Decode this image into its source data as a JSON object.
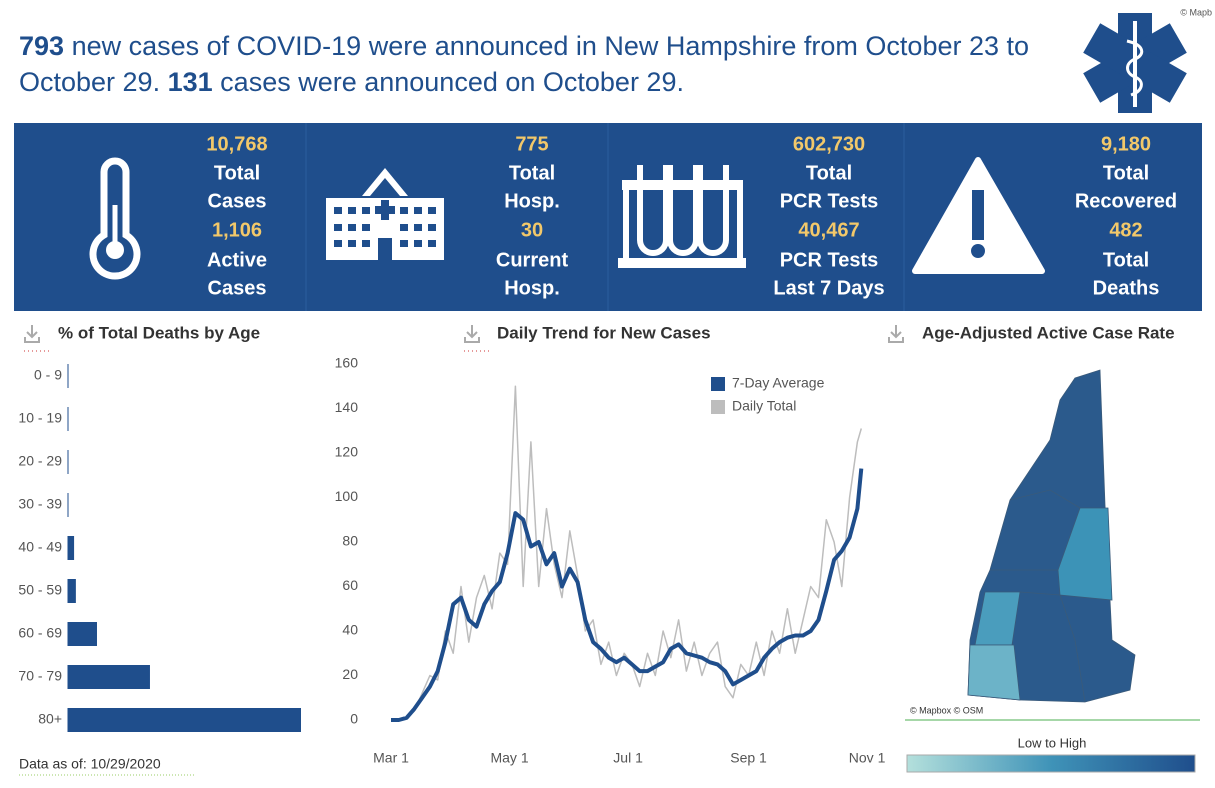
{
  "corner_attribution": "© Mapb",
  "header": {
    "new_cases": 793,
    "text1": "new cases of COVID-19 were announced in New Hampshire from October 23 to October 29.",
    "day_cases": 131,
    "text2": "cases were announced on October 29."
  },
  "stats": [
    {
      "value1": "10,768",
      "label1": [
        "Total",
        "Cases"
      ],
      "value2": "1,106",
      "label2": [
        "Active",
        "Cases"
      ]
    },
    {
      "value1": "775",
      "label1": [
        "Total",
        "Hosp."
      ],
      "value2": "30",
      "label2": [
        "Current",
        "Hosp."
      ]
    },
    {
      "value1": "602,730",
      "label1": [
        "Total",
        "PCR Tests"
      ],
      "value2": "40,467",
      "label2": [
        "PCR Tests",
        "Last 7 Days"
      ]
    },
    {
      "value1": "9,180",
      "label1": [
        "Total",
        "Recovered"
      ],
      "value2": "482",
      "label2": [
        "Total",
        "Deaths"
      ]
    }
  ],
  "chart_data": [
    {
      "type": "bar",
      "orientation": "horizontal",
      "title": "% of Total Deaths by Age",
      "categories": [
        "0 - 9",
        "10 - 19",
        "20 - 29",
        "30 - 39",
        "40 - 49",
        "50 - 59",
        "60 - 69",
        "70 - 79",
        "80+"
      ],
      "values": [
        0,
        0,
        0,
        0,
        1.7,
        2.2,
        8.1,
        22.9,
        65.1
      ],
      "color": "#1f4e8c"
    },
    {
      "type": "line",
      "title": "Daily Trend for New Cases",
      "x": [
        0,
        4,
        8,
        12,
        16,
        20,
        24,
        28,
        32,
        36,
        40,
        44,
        48,
        52,
        56,
        60,
        64,
        68,
        72,
        76,
        80,
        84,
        88,
        92,
        96,
        100,
        104,
        108,
        112,
        116,
        120,
        124,
        128,
        132,
        136,
        140,
        144,
        148,
        152,
        156,
        160,
        164,
        168,
        172,
        176,
        180,
        184,
        188,
        192,
        196,
        200,
        204,
        208,
        212,
        216,
        220,
        224,
        228,
        232,
        236,
        240,
        242
      ],
      "xlim": [
        -3,
        250
      ],
      "xticks": [
        {
          "value": 0,
          "label": "Mar 1"
        },
        {
          "value": 61,
          "label": "May 1"
        },
        {
          "value": 122,
          "label": "Jul 1"
        },
        {
          "value": 184,
          "label": "Sep 1"
        },
        {
          "value": 245,
          "label": "Nov 1"
        }
      ],
      "ylim": [
        -3,
        163
      ],
      "yticks": [
        0,
        20,
        40,
        60,
        80,
        100,
        120,
        140,
        160
      ],
      "legend": "top-right",
      "series": [
        {
          "name": "7-Day Average",
          "color": "#1f4e8c",
          "values": [
            0,
            0,
            1,
            5,
            10,
            15,
            22,
            35,
            52,
            55,
            45,
            42,
            52,
            58,
            62,
            75,
            93,
            90,
            78,
            80,
            70,
            75,
            60,
            68,
            62,
            45,
            35,
            32,
            28,
            26,
            28,
            25,
            22,
            22,
            24,
            26,
            32,
            34,
            30,
            29,
            28,
            26,
            25,
            22,
            16,
            18,
            20,
            22,
            28,
            32,
            35,
            37,
            38,
            38,
            40,
            45,
            58,
            72,
            76,
            82,
            95,
            113
          ]
        },
        {
          "name": "Daily Total",
          "color": "#bdbdbd",
          "values": [
            0,
            0,
            1,
            4,
            12,
            20,
            18,
            40,
            30,
            60,
            35,
            55,
            65,
            50,
            75,
            70,
            150,
            60,
            125,
            60,
            95,
            70,
            55,
            85,
            65,
            40,
            45,
            25,
            35,
            20,
            30,
            25,
            15,
            30,
            20,
            40,
            28,
            45,
            22,
            35,
            20,
            30,
            35,
            15,
            10,
            25,
            20,
            35,
            20,
            40,
            30,
            50,
            30,
            45,
            60,
            55,
            90,
            80,
            60,
            100,
            125,
            131
          ]
        }
      ]
    }
  ],
  "map": {
    "title": "Age-Adjusted Active Case Rate",
    "attribution": "© Mapbox © OSM",
    "legend_label": "Low to High"
  },
  "footer": {
    "data_as_of": "Data as of: 10/29/2020"
  }
}
